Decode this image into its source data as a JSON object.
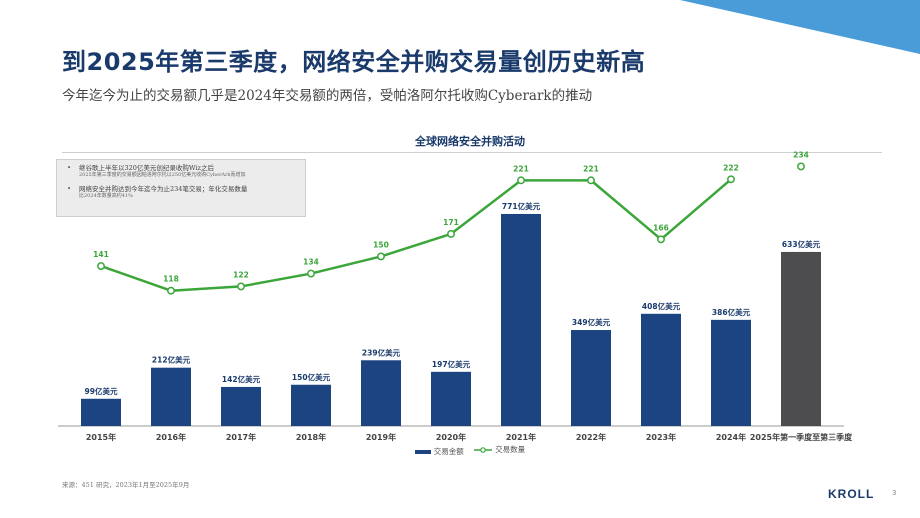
{
  "slide": {
    "title": "到2025年第三季度，网络安全并购交易量创历史新高",
    "subtitle": "今年迄今为止的交易额几乎是2024年交易额的两倍，受帕洛阿尔托收购Cyberark的推动",
    "accent_color": "#4a9cd8",
    "source": "来源：451 研究，2023年1月至2025年9月",
    "logo_text": "KROLL",
    "page_number": "3"
  },
  "notes": [
    {
      "head": "继谷歌上半年以320亿美元创纪录收购Wiz之后",
      "sub": "2025年第三季度的交易额因帕洛阿尔托以250亿美元收购CyberArk而增加"
    },
    {
      "head": "网络安全并购达到今年迄今为止234笔交易；年化交易数量",
      "sub": "比2024年数量高约41%"
    }
  ],
  "chart_data": {
    "type": "bar",
    "title": "全球网络安全并购活动",
    "categories": [
      "2015年",
      "2016年",
      "2017年",
      "2018年",
      "2019年",
      "2020年",
      "2021年",
      "2022年",
      "2023年",
      "2024年",
      "2025年第一季度至第三季度"
    ],
    "series": [
      {
        "name": "交易金额",
        "type": "bar",
        "values": [
          99,
          212,
          142,
          150,
          239,
          197,
          771,
          349,
          408,
          386,
          633
        ],
        "labels": [
          "99亿美元",
          "212亿美元",
          "142亿美元",
          "150亿美元",
          "239亿美元",
          "197亿美元",
          "771亿美元",
          "349亿美元",
          "408亿美元",
          "386亿美元",
          "633亿美元"
        ],
        "color": "#1b4480",
        "highlight_last_color": "#4d4d4f"
      },
      {
        "name": "交易数量",
        "type": "line",
        "values": [
          141,
          118,
          122,
          134,
          150,
          171,
          221,
          221,
          166,
          222,
          234
        ],
        "color": "#3ba63a",
        "last_point_detached": true
      }
    ],
    "legend_position": "bottom",
    "grid": false
  }
}
